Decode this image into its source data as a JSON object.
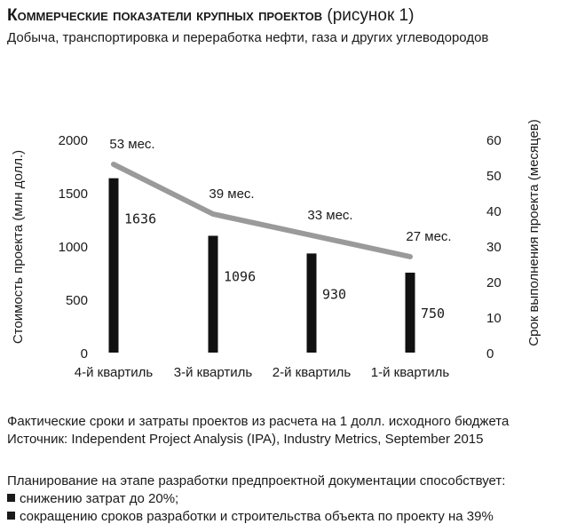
{
  "header": {
    "title_main": "Коммерческие показатели крупных проектов",
    "title_suffix": "(рисунок 1)",
    "subtitle": "Добыча, транспортировка и переработка нефти, газа и других углеводородов"
  },
  "chart_data": {
    "type": "bar",
    "categories": [
      "4-й квартиль",
      "3-й квартиль",
      "2-й квартиль",
      "1-й квартиль"
    ],
    "ylabel_left": "Стоимость проекта (млн долл.)",
    "ylabel_right": "Срок выполнения проекта (месяцев)",
    "ylim_left": [
      0,
      2000
    ],
    "yticks_left": [
      "0",
      "500",
      "1000",
      "1500",
      "2000"
    ],
    "ylim_right": [
      0,
      60
    ],
    "yticks_right": [
      "0",
      "10",
      "20",
      "30",
      "40",
      "50",
      "60"
    ],
    "grid": false,
    "series": [
      {
        "type": "bar",
        "axis": "left",
        "values": [
          1636,
          1096,
          930,
          750
        ],
        "labels": [
          "1636",
          "1096",
          "930",
          "750"
        ],
        "color": "#111111"
      },
      {
        "type": "line",
        "axis": "right",
        "values": [
          53,
          39,
          33,
          27
        ],
        "labels": [
          "53 мес.",
          "39 мес.",
          "33 мес.",
          "27 мес."
        ],
        "color": "#9a9a9a"
      }
    ]
  },
  "notes": {
    "line1": "Фактические сроки и затраты проектов из расчета на 1 долл. исходного бюджета",
    "line2": "Источник: Independent Project Analysis (IPA), Industry Metrics, September 2015"
  },
  "planning": {
    "intro": "Планирование на этапе разработки предпроектной документации способствует:",
    "items": [
      "снижению затрат до 20%;",
      "сокращению сроков разработки и строительства объекта по проекту на 39%"
    ]
  }
}
